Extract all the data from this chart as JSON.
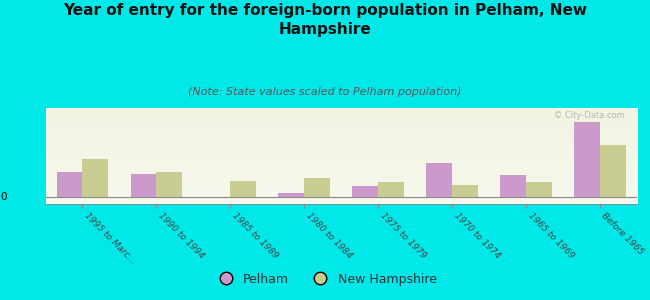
{
  "title": "Year of entry for the foreign-born population in Pelham, New\nHampshire",
  "subtitle": "(Note: State values scaled to Pelham population)",
  "categories": [
    "1995 to Marc...",
    "1990 to 1994",
    "1985 to 1989",
    "1980 to 1984",
    "1975 to 1979",
    "1970 to 1974",
    "1965 to 1969",
    "Before 1965"
  ],
  "pelham_values": [
    18,
    17,
    0,
    3,
    8,
    25,
    16,
    55
  ],
  "nh_values": [
    28,
    18,
    12,
    14,
    11,
    9,
    11,
    38
  ],
  "pelham_color": "#cc99cc",
  "nh_color": "#c8cc90",
  "background_color": "#00e8e8",
  "title_fontsize": 11,
  "subtitle_fontsize": 8,
  "bar_width": 0.35,
  "watermark": "© City-Data.com"
}
